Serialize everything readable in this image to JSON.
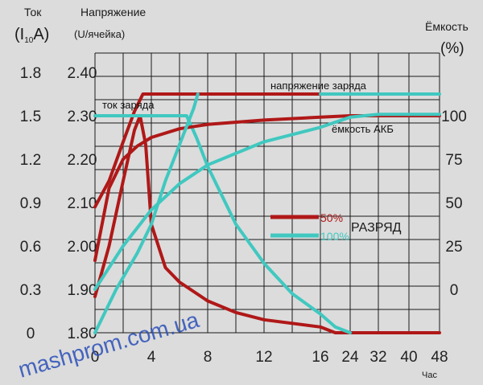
{
  "colors": {
    "background": "#dcdcdc",
    "grid": "#111111",
    "dark_red": "#b01818",
    "teal": "#40c8c0",
    "watermark": "#2a50b8"
  },
  "chart_data": {
    "type": "line",
    "left_axis_1": {
      "title": "Ток",
      "unit_main": "(I",
      "unit_sub": "10",
      "unit_tail": "A)",
      "ticks": [
        "1.8",
        "1.5",
        "1.2",
        "0.9",
        "0.6",
        "0.3",
        "0"
      ]
    },
    "left_axis_2": {
      "title": "Напряжение",
      "unit": "(U/ячейка)",
      "ticks": [
        "2.40",
        "2.30",
        "2.20",
        "2.10",
        "2.00",
        "1.90",
        "1.80"
      ]
    },
    "right_axis": {
      "title": "Ёмкость",
      "unit": "(%)",
      "ticks": [
        "100",
        "75",
        "50",
        "25",
        "0"
      ]
    },
    "x_axis": {
      "unit": "Час",
      "ticks": [
        "0",
        "4",
        "8",
        "12",
        "16",
        "24",
        "32",
        "40",
        "48"
      ]
    },
    "annotations": {
      "charge_voltage": "напряжение заряда",
      "charge_current": "ток заряда",
      "battery_capacity": "ёмкость АКБ"
    },
    "legend": {
      "title": "РАЗРЯД",
      "items": [
        {
          "name": "50%",
          "color": "#b01818"
        },
        {
          "name": "100%",
          "color": "#40c8c0"
        }
      ]
    },
    "series": [
      {
        "key": "voltage_50",
        "color": "#b01818",
        "points": [
          [
            0,
            2.09
          ],
          [
            1,
            2.15
          ],
          [
            2,
            2.24
          ],
          [
            2.8,
            2.31
          ],
          [
            3.4,
            2.35
          ],
          [
            7,
            2.35
          ],
          [
            12,
            2.35
          ],
          [
            16,
            2.35
          ]
        ]
      },
      {
        "key": "voltage_100",
        "color": "#40c8c0",
        "points": [
          [
            16,
            2.35
          ],
          [
            24,
            2.35
          ],
          [
            32,
            2.35
          ],
          [
            40,
            2.35
          ],
          [
            48,
            2.35
          ]
        ]
      },
      {
        "key": "current_50",
        "color": "#b01818",
        "points": [
          [
            0,
            0.25
          ],
          [
            1,
            0.6
          ],
          [
            2,
            1.05
          ],
          [
            2.8,
            1.4
          ],
          [
            3.2,
            1.5
          ],
          [
            3.6,
            1.3
          ],
          [
            4,
            0.75
          ],
          [
            5,
            0.45
          ],
          [
            6,
            0.35
          ],
          [
            8,
            0.22
          ],
          [
            10,
            0.14
          ],
          [
            12,
            0.09
          ],
          [
            16,
            0.04
          ],
          [
            20,
            0.0
          ],
          [
            24,
            0.0
          ],
          [
            32,
            0.0
          ],
          [
            40,
            0.0
          ],
          [
            48,
            0.0
          ]
        ]
      },
      {
        "key": "current_100",
        "color": "#40c8c0",
        "points": [
          [
            0,
            1.5
          ],
          [
            6.5,
            1.5
          ],
          [
            7.2,
            1.35
          ],
          [
            8,
            1.15
          ],
          [
            10,
            0.75
          ],
          [
            12,
            0.48
          ],
          [
            14,
            0.27
          ],
          [
            16,
            0.13
          ],
          [
            20,
            0.04
          ],
          [
            24,
            0.0
          ]
        ]
      },
      {
        "key": "capacity_50",
        "color": "#b01818",
        "points": [
          [
            0,
            0.5
          ],
          [
            1,
            1.0
          ],
          [
            2,
            1.2
          ],
          [
            3,
            1.29
          ],
          [
            4,
            1.35
          ],
          [
            6,
            1.41
          ],
          [
            8,
            1.44
          ],
          [
            12,
            1.47
          ],
          [
            16,
            1.49
          ],
          [
            24,
            1.5
          ],
          [
            32,
            1.5
          ],
          [
            48,
            1.5
          ]
        ]
      },
      {
        "key": "capacity_100_charge",
        "color": "#40c8c0",
        "points": [
          [
            0,
            0.0
          ],
          [
            1.5,
            0.3
          ],
          [
            3,
            0.55
          ],
          [
            4,
            0.75
          ],
          [
            5,
            1.05
          ],
          [
            6,
            1.3
          ],
          [
            7,
            1.55
          ],
          [
            7.3,
            1.65
          ]
        ]
      },
      {
        "key": "capacity_100_capacity",
        "color": "#40c8c0",
        "points": [
          [
            0,
            0.3
          ],
          [
            2,
            0.6
          ],
          [
            4,
            0.85
          ],
          [
            6,
            1.03
          ],
          [
            8,
            1.16
          ],
          [
            12,
            1.32
          ],
          [
            16,
            1.42
          ],
          [
            24,
            1.49
          ],
          [
            32,
            1.51
          ],
          [
            48,
            1.51
          ]
        ]
      }
    ]
  },
  "watermark": "mashprom.com.ua"
}
